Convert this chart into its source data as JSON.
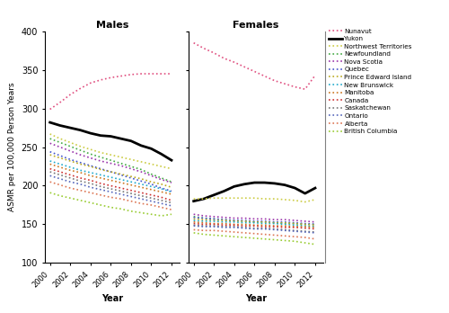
{
  "years": [
    2000,
    2001,
    2002,
    2003,
    2004,
    2005,
    2006,
    2007,
    2008,
    2009,
    2010,
    2011,
    2012
  ],
  "ylim": [
    100,
    400
  ],
  "yticks": [
    100,
    150,
    200,
    250,
    300,
    350,
    400
  ],
  "ylabel": "ASMR per 100,000 Person Years",
  "xlabel": "Year",
  "title_males": "Males",
  "title_females": "Females",
  "series": {
    "Nunavut": {
      "color": "#e05080",
      "linestyle": "dotted",
      "linewidth": 1.2,
      "males": [
        299,
        308,
        318,
        326,
        333,
        337,
        340,
        342,
        344,
        345,
        345,
        345,
        345
      ],
      "females": [
        385,
        378,
        372,
        365,
        360,
        354,
        348,
        342,
        336,
        332,
        328,
        325,
        343
      ]
    },
    "Yukon": {
      "color": "#000000",
      "linestyle": "solid",
      "linewidth": 2.0,
      "males": [
        282,
        278,
        275,
        272,
        268,
        265,
        264,
        261,
        258,
        252,
        248,
        241,
        233
      ],
      "females": [
        180,
        183,
        188,
        193,
        199,
        202,
        204,
        204,
        203,
        201,
        197,
        190,
        197
      ]
    },
    "Northwest Territories": {
      "color": "#cccc44",
      "linestyle": "dotted",
      "linewidth": 1.2,
      "males": [
        267,
        261,
        256,
        251,
        247,
        243,
        240,
        237,
        234,
        231,
        228,
        225,
        222
      ],
      "females": [
        183,
        183,
        184,
        184,
        184,
        184,
        184,
        183,
        183,
        182,
        181,
        179,
        182
      ]
    },
    "Newfoundland": {
      "color": "#44aa44",
      "linestyle": "dotted",
      "linewidth": 1.2,
      "males": [
        261,
        256,
        251,
        246,
        241,
        237,
        233,
        229,
        225,
        221,
        215,
        210,
        205
      ],
      "females": [
        160,
        158,
        157,
        156,
        155,
        154,
        153,
        153,
        152,
        151,
        151,
        150,
        150
      ]
    },
    "Nova Scotia": {
      "color": "#9933aa",
      "linestyle": "dotted",
      "linewidth": 1.2,
      "males": [
        255,
        250,
        245,
        240,
        236,
        232,
        229,
        226,
        222,
        218,
        213,
        208,
        204
      ],
      "females": [
        163,
        161,
        160,
        159,
        158,
        158,
        157,
        157,
        156,
        156,
        155,
        154,
        153
      ]
    },
    "Quebec": {
      "color": "#4455cc",
      "linestyle": "dotted",
      "linewidth": 1.2,
      "males": [
        244,
        239,
        234,
        230,
        226,
        222,
        218,
        214,
        210,
        206,
        202,
        197,
        193
      ],
      "females": [
        159,
        158,
        157,
        156,
        155,
        155,
        154,
        154,
        153,
        153,
        152,
        151,
        150
      ]
    },
    "Prince Edward Island": {
      "color": "#bbaa22",
      "linestyle": "dotted",
      "linewidth": 1.2,
      "males": [
        240,
        236,
        232,
        228,
        225,
        221,
        218,
        215,
        212,
        209,
        205,
        202,
        198
      ],
      "females": [
        157,
        156,
        155,
        155,
        154,
        154,
        153,
        153,
        152,
        152,
        151,
        150,
        149
      ]
    },
    "New Brunswick": {
      "color": "#22aacc",
      "linestyle": "dotted",
      "linewidth": 1.2,
      "males": [
        232,
        228,
        224,
        220,
        217,
        214,
        211,
        208,
        205,
        202,
        199,
        196,
        192
      ],
      "females": [
        155,
        154,
        154,
        153,
        153,
        152,
        152,
        151,
        151,
        150,
        149,
        148,
        147
      ]
    },
    "Manitoba": {
      "color": "#cc7722",
      "linestyle": "dotted",
      "linewidth": 1.2,
      "males": [
        228,
        224,
        220,
        217,
        213,
        210,
        207,
        204,
        201,
        198,
        195,
        192,
        189
      ],
      "females": [
        153,
        152,
        151,
        151,
        150,
        150,
        149,
        149,
        148,
        148,
        147,
        147,
        146
      ]
    },
    "Canada": {
      "color": "#cc3333",
      "linestyle": "dotted",
      "linewidth": 1.2,
      "males": [
        222,
        218,
        214,
        210,
        207,
        203,
        200,
        197,
        194,
        191,
        188,
        185,
        181
      ],
      "females": [
        151,
        150,
        150,
        149,
        149,
        148,
        148,
        147,
        147,
        146,
        146,
        145,
        144
      ]
    },
    "Saskatchewan": {
      "color": "#777777",
      "linestyle": "dotted",
      "linewidth": 1.2,
      "males": [
        218,
        214,
        210,
        206,
        203,
        199,
        196,
        193,
        190,
        187,
        184,
        181,
        178
      ],
      "females": [
        149,
        148,
        148,
        147,
        147,
        146,
        145,
        145,
        144,
        143,
        142,
        141,
        140
      ]
    },
    "Ontario": {
      "color": "#5566bb",
      "linestyle": "dotted",
      "linewidth": 1.2,
      "males": [
        213,
        209,
        205,
        202,
        198,
        195,
        192,
        189,
        186,
        183,
        180,
        177,
        174
      ],
      "females": [
        148,
        147,
        147,
        146,
        146,
        145,
        144,
        144,
        143,
        142,
        141,
        140,
        139
      ]
    },
    "Alberta": {
      "color": "#dd7755",
      "linestyle": "dotted",
      "linewidth": 1.2,
      "males": [
        205,
        201,
        197,
        194,
        191,
        188,
        185,
        183,
        180,
        177,
        175,
        172,
        169
      ],
      "females": [
        143,
        142,
        142,
        141,
        140,
        139,
        138,
        137,
        136,
        135,
        134,
        133,
        131
      ]
    },
    "British Columbia": {
      "color": "#99cc33",
      "linestyle": "dotted",
      "linewidth": 1.2,
      "males": [
        191,
        187,
        184,
        181,
        178,
        175,
        172,
        170,
        167,
        165,
        163,
        161,
        163
      ],
      "females": [
        139,
        137,
        136,
        135,
        134,
        133,
        132,
        131,
        130,
        129,
        128,
        126,
        124
      ]
    }
  }
}
